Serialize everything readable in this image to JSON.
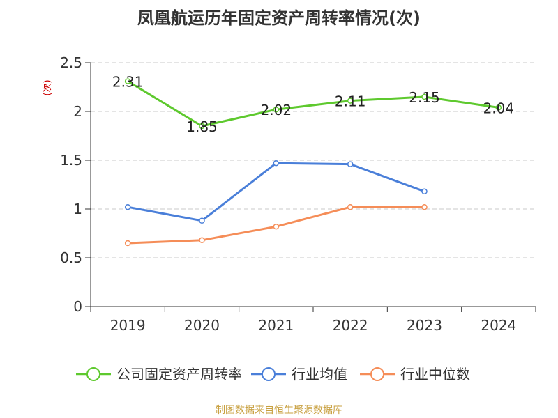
{
  "chart_data": {
    "type": "line",
    "title": "凤凰航运历年固定资产周转率情况(次)",
    "ylabel": "(次)",
    "xlabel": "",
    "categories": [
      "2019",
      "2020",
      "2021",
      "2022",
      "2023",
      "2024"
    ],
    "ylim": [
      0,
      2.5
    ],
    "yticks": [
      "0",
      "0.5",
      "1",
      "1.5",
      "2",
      "2.5"
    ],
    "grid": true,
    "legend_position": "bottom",
    "series": [
      {
        "name": "公司固定资产周转率",
        "color": "#5ec92e",
        "values": [
          2.31,
          1.85,
          2.02,
          2.11,
          2.15,
          2.04
        ],
        "labels": [
          "2.31",
          "1.85",
          "2.02",
          "2.11",
          "2.15",
          "2.04"
        ]
      },
      {
        "name": "行业均值",
        "color": "#4a7fd9",
        "values": [
          1.02,
          0.88,
          1.47,
          1.46,
          1.18,
          null
        ]
      },
      {
        "name": "行业中位数",
        "color": "#f58d58",
        "values": [
          0.65,
          0.68,
          0.82,
          1.02,
          1.02,
          null
        ]
      }
    ],
    "source": "制图数据来自恒生聚源数据库"
  }
}
